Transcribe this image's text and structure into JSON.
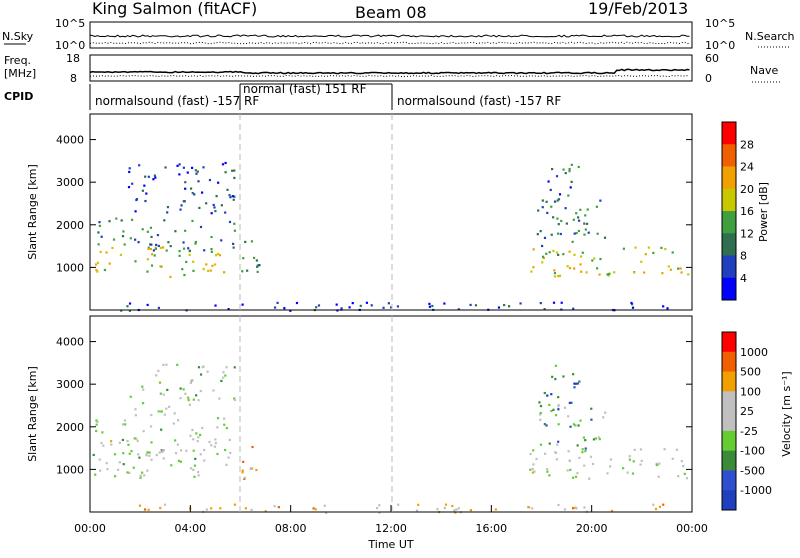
{
  "header": {
    "station": "King Salmon (fitACF)",
    "beam": "Beam 08",
    "date": "19/Feb/2013"
  },
  "chart_data": [
    {
      "type": "line",
      "name": "noise",
      "left_label": "N.Sky",
      "left_ticks": [
        "10^5",
        "10^0"
      ],
      "right_label": "N.Search",
      "right_ticks": [
        "10^5",
        "10^0"
      ]
    },
    {
      "type": "line",
      "name": "frequency",
      "left_label_lines": [
        "Freq.",
        "[MHz]"
      ],
      "left_ticks": [
        "18",
        "8"
      ],
      "right_label": "Nave",
      "right_ticks": [
        "60",
        "0"
      ],
      "cpid_label": "CPID"
    },
    {
      "type": "table",
      "name": "cpid",
      "modes": [
        {
          "label": "normalsound (fast) -157 RF",
          "start_h": 0,
          "end_h": 6
        },
        {
          "label": "normal (fast) 151 RF",
          "start_h": 6,
          "end_h": 12
        },
        {
          "label": "normalsound (fast) -157 RF",
          "start_h": 12,
          "end_h": 24
        }
      ]
    },
    {
      "type": "heatmap",
      "name": "power",
      "ylabel": "Slant Range [km]",
      "yticks": [
        1000,
        2000,
        3000,
        4000
      ],
      "ylim": [
        0,
        4600
      ],
      "colorbar_label": "Power [dB]",
      "colorbar_ticks": [
        "28",
        "24",
        "20",
        "16",
        "12",
        "8",
        "4"
      ],
      "colors": [
        "#0000ff",
        "#1f3fbf",
        "#2f6f4f",
        "#40a040",
        "#c8c800",
        "#f0a000",
        "#f06000",
        "#ff0000"
      ]
    },
    {
      "type": "heatmap",
      "name": "velocity",
      "ylabel": "Slant Range [km]",
      "yticks": [
        1000,
        2000,
        3000,
        4000
      ],
      "ylim": [
        0,
        4600
      ],
      "colorbar_label": "Velocity [m s⁻¹]",
      "colorbar_ticks": [
        "1000",
        "500",
        "100",
        "25",
        "-25",
        "-100",
        "-500",
        "-1000"
      ],
      "colors": [
        "#1f3fbf",
        "#2f4fd0",
        "#3a8a3a",
        "#66cc33",
        "#c0c0c0",
        "#c0c0c0",
        "#f0a000",
        "#f06000",
        "#ff0000"
      ],
      "xticks": [
        "00:00",
        "04:00",
        "08:00",
        "12:00",
        "16:00",
        "20:00",
        "00:00"
      ],
      "xlabel": "Time UT"
    }
  ],
  "echo_regions": [
    {
      "t0": 0.0,
      "t1": 5.6,
      "r0": 800,
      "r1": 1500,
      "power": 0.55,
      "vel": 0.5
    },
    {
      "t0": 0.2,
      "t1": 5.8,
      "r0": 1400,
      "r1": 2200,
      "power": 0.3,
      "vel": 0.5
    },
    {
      "t0": 1.5,
      "t1": 5.8,
      "r0": 2200,
      "r1": 3500,
      "power": 0.15,
      "vel": 0.45
    },
    {
      "t0": 6.0,
      "t1": 6.8,
      "r0": 600,
      "r1": 1700,
      "power": 0.3,
      "vel": 0.7
    },
    {
      "t0": 17.5,
      "t1": 24.0,
      "r0": 800,
      "r1": 1500,
      "power": 0.55,
      "vel": 0.5
    },
    {
      "t0": 17.8,
      "t1": 20.5,
      "r0": 1500,
      "r1": 2600,
      "power": 0.3,
      "vel": 0.35
    },
    {
      "t0": 18.0,
      "t1": 19.5,
      "r0": 2400,
      "r1": 3500,
      "power": 0.2,
      "vel": 0.15
    },
    {
      "t0": 1.0,
      "t1": 23.0,
      "r0": 0,
      "r1": 200,
      "power": 0.1,
      "vel": 0.65
    }
  ]
}
